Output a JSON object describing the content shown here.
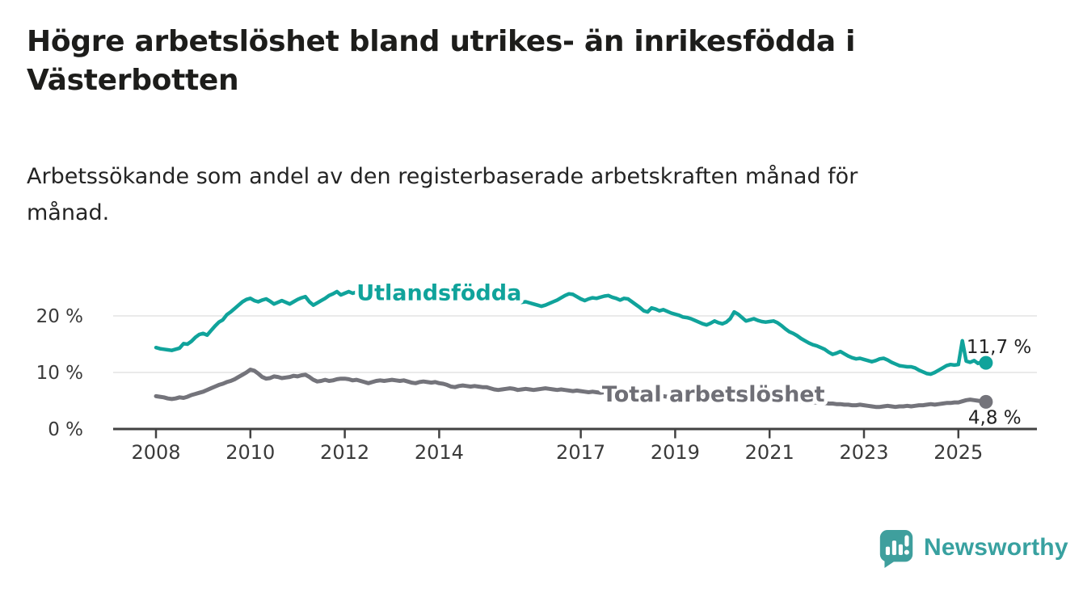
{
  "header": {
    "title_line1": "Högre arbetslöshet bland utrikes- än inrikesfödda i",
    "title_line2": "Västerbotten",
    "subtitle_line1": "Arbetssökande som andel av den registerbaserade arbetskraften månad för",
    "subtitle_line2": "månad."
  },
  "footer": {
    "brand": "Newsworthy"
  },
  "chart_data": {
    "type": "line",
    "title": "Högre arbetslöshet bland utrikes- än inrikesfödda i Västerbotten",
    "subtitle": "Arbetssökande som andel av den registerbaserade arbetskraften månad för månad.",
    "unit": "percent of registered labour force",
    "frequency": "monthly",
    "x_start": "2008-01",
    "x_end": "2025-08",
    "grid": "horizontal-only",
    "legend_position": "inline-labels",
    "x_axis": {
      "start_year": 2008,
      "ticks": [
        {
          "value": 2008,
          "label": "2008"
        },
        {
          "value": 2010,
          "label": "2010"
        },
        {
          "value": 2012,
          "label": "2012"
        },
        {
          "value": 2014,
          "label": "2014"
        },
        {
          "value": 2017,
          "label": "2017"
        },
        {
          "value": 2019,
          "label": "2019"
        },
        {
          "value": 2021,
          "label": "2021"
        },
        {
          "value": 2023,
          "label": "2023"
        },
        {
          "value": 2025,
          "label": "2025"
        }
      ]
    },
    "y_axis": {
      "range": [
        0,
        27
      ],
      "ticks": [
        {
          "value": 0,
          "label": "0 %"
        },
        {
          "value": 10,
          "label": "10 %"
        },
        {
          "value": 20,
          "label": "20 %"
        }
      ]
    },
    "colors": {
      "gridline": "#e3e3e3",
      "axis": "#424242",
      "utlandsfodda": "#10a39b",
      "total": "#74747b",
      "total_label": "#6f6f76",
      "logo_teal": "#3f9f9d"
    },
    "series": [
      {
        "name": "Utlandsfödda",
        "color": "#10a39b",
        "width": 4.5,
        "inline_label": {
          "year": 2012.25,
          "pct": 22.8
        },
        "end_label": "11,7 %",
        "end_value": 11.7,
        "values": [
          14.4,
          14.2,
          14.1,
          14.0,
          13.9,
          14.1,
          14.3,
          15.1,
          15.0,
          15.5,
          16.2,
          16.7,
          16.9,
          16.6,
          17.4,
          18.2,
          18.9,
          19.3,
          20.2,
          20.7,
          21.3,
          21.9,
          22.5,
          22.9,
          23.1,
          22.7,
          22.5,
          22.8,
          23.0,
          22.6,
          22.1,
          22.4,
          22.7,
          22.4,
          22.1,
          22.5,
          22.9,
          23.2,
          23.4,
          22.5,
          21.9,
          22.3,
          22.7,
          23.1,
          23.6,
          23.9,
          24.3,
          23.7,
          24.0,
          24.3,
          24.0,
          24.2,
          24.3,
          23.9,
          23.6,
          23.8,
          24.0,
          23.8,
          23.9,
          24.1,
          23.9,
          23.6,
          23.8,
          23.9,
          23.6,
          23.4,
          23.2,
          23.4,
          23.6,
          23.4,
          23.5,
          23.7,
          23.5,
          23.3,
          23.5,
          23.3,
          23.1,
          23.2,
          23.4,
          23.2,
          23.0,
          23.1,
          23.3,
          23.1,
          22.9,
          23.1,
          23.2,
          23.0,
          22.8,
          22.9,
          23.1,
          22.9,
          22.6,
          22.4,
          22.5,
          22.3,
          22.1,
          21.9,
          21.7,
          21.9,
          22.2,
          22.5,
          22.8,
          23.2,
          23.6,
          23.9,
          23.8,
          23.4,
          23.0,
          22.7,
          23.0,
          23.2,
          23.1,
          23.3,
          23.5,
          23.6,
          23.3,
          23.1,
          22.8,
          23.1,
          23.0,
          22.5,
          22.0,
          21.5,
          20.9,
          20.7,
          21.4,
          21.2,
          20.9,
          21.1,
          20.8,
          20.5,
          20.3,
          20.1,
          19.8,
          19.7,
          19.5,
          19.2,
          18.9,
          18.6,
          18.4,
          18.7,
          19.1,
          18.8,
          18.6,
          18.9,
          19.5,
          20.7,
          20.3,
          19.7,
          19.1,
          19.3,
          19.5,
          19.2,
          19.0,
          18.9,
          19.0,
          19.1,
          18.8,
          18.3,
          17.7,
          17.2,
          16.9,
          16.5,
          16.0,
          15.6,
          15.2,
          14.9,
          14.7,
          14.4,
          14.1,
          13.6,
          13.2,
          13.4,
          13.7,
          13.3,
          12.9,
          12.6,
          12.4,
          12.5,
          12.3,
          12.1,
          11.9,
          12.1,
          12.4,
          12.5,
          12.2,
          11.8,
          11.5,
          11.2,
          11.1,
          11.0,
          11.0,
          10.8,
          10.4,
          10.1,
          9.8,
          9.7,
          10.0,
          10.4,
          10.8,
          11.2,
          11.4,
          11.3,
          11.4,
          15.6,
          12.0,
          11.8,
          12.1,
          11.6,
          11.9,
          11.7
        ]
      },
      {
        "name": "Total arbetslöshet",
        "color": "#74747b",
        "label_color": "#6f6f76",
        "width": 5,
        "inline_label": {
          "year": 2017.45,
          "pct": 4.86
        },
        "end_label": "4,8 %",
        "end_value": 4.8,
        "values": [
          5.8,
          5.7,
          5.6,
          5.4,
          5.3,
          5.4,
          5.6,
          5.5,
          5.7,
          6.0,
          6.2,
          6.4,
          6.6,
          6.9,
          7.2,
          7.5,
          7.8,
          8.0,
          8.3,
          8.5,
          8.8,
          9.2,
          9.6,
          10.0,
          10.5,
          10.3,
          9.8,
          9.2,
          8.9,
          9.0,
          9.3,
          9.2,
          9.0,
          9.1,
          9.2,
          9.4,
          9.3,
          9.5,
          9.6,
          9.2,
          8.7,
          8.4,
          8.5,
          8.7,
          8.5,
          8.6,
          8.8,
          8.9,
          8.9,
          8.8,
          8.6,
          8.7,
          8.5,
          8.3,
          8.1,
          8.3,
          8.5,
          8.6,
          8.5,
          8.6,
          8.7,
          8.6,
          8.5,
          8.6,
          8.4,
          8.2,
          8.1,
          8.3,
          8.4,
          8.3,
          8.2,
          8.3,
          8.1,
          8.0,
          7.8,
          7.5,
          7.4,
          7.6,
          7.7,
          7.6,
          7.5,
          7.6,
          7.5,
          7.4,
          7.4,
          7.2,
          7.0,
          6.9,
          7.0,
          7.1,
          7.2,
          7.1,
          6.9,
          7.0,
          7.1,
          7.0,
          6.9,
          7.0,
          7.1,
          7.2,
          7.1,
          7.0,
          6.9,
          7.0,
          6.9,
          6.8,
          6.7,
          6.8,
          6.7,
          6.6,
          6.5,
          6.6,
          6.5,
          6.4,
          6.5,
          6.6,
          6.5,
          6.4,
          6.3,
          6.4,
          6.3,
          6.2,
          6.1,
          6.0,
          5.9,
          5.8,
          5.9,
          6.0,
          5.9,
          5.8,
          5.7,
          5.8,
          5.7,
          5.6,
          5.5,
          5.6,
          5.5,
          5.4,
          5.5,
          5.6,
          5.5,
          5.6,
          5.7,
          5.8,
          5.9,
          6.1,
          6.4,
          6.8,
          7.0,
          6.9,
          6.8,
          6.7,
          6.6,
          6.4,
          6.2,
          6.1,
          6.0,
          5.8,
          5.6,
          5.4,
          5.2,
          5.1,
          5.0,
          4.9,
          4.8,
          4.8,
          4.7,
          4.7,
          4.7,
          4.6,
          4.6,
          4.5,
          4.5,
          4.4,
          4.4,
          4.3,
          4.3,
          4.2,
          4.2,
          4.3,
          4.2,
          4.1,
          4.0,
          3.9,
          3.9,
          4.0,
          4.1,
          4.0,
          3.9,
          4.0,
          4.0,
          4.1,
          4.0,
          4.1,
          4.2,
          4.2,
          4.3,
          4.4,
          4.3,
          4.4,
          4.5,
          4.6,
          4.6,
          4.7,
          4.7,
          4.9,
          5.1,
          5.2,
          5.1,
          5.0,
          4.9,
          4.8
        ]
      }
    ]
  }
}
